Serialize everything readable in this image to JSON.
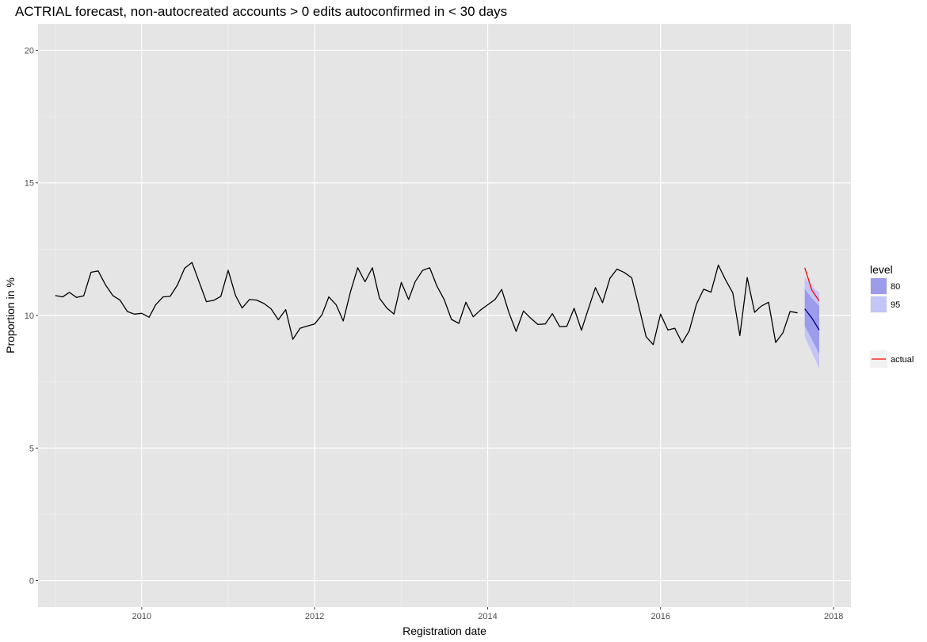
{
  "chart_data": {
    "type": "line",
    "title": "ACTRIAL forecast, non-autocreated accounts > 0 edits autoconfirmed in < 30 days",
    "xlabel": "Registration date",
    "ylabel": "Proportion in %",
    "xlim": [
      "2008-10-20",
      "2018-03-15"
    ],
    "ylim": [
      -1,
      21
    ],
    "x_ticks": [
      "2010",
      "2012",
      "2014",
      "2016",
      "2018"
    ],
    "x_tick_dates": [
      "2010-01-01",
      "2012-01-01",
      "2014-01-01",
      "2016-01-01",
      "2018-01-01"
    ],
    "y_ticks": [
      0,
      5,
      10,
      15,
      20
    ],
    "y_tick_labels": [
      "0",
      "5",
      "10",
      "15",
      "20"
    ],
    "grid": true,
    "legend_position": "right",
    "colors": {
      "panel": "#e5e5e5",
      "grid_major": "#ffffff",
      "history": "#000000",
      "forecast_mean": "#00008b",
      "band_80": "#9c9ceb",
      "band_95": "#c4c4f6",
      "actual": "#ff0000"
    },
    "legend": {
      "fill_title": "level",
      "fill_items": [
        {
          "label": "80",
          "color": "#9c9ceb"
        },
        {
          "label": "95",
          "color": "#c4c4f6"
        }
      ],
      "line_items": [
        {
          "label": "actual",
          "color": "#ff0000"
        }
      ]
    },
    "history": {
      "start": "2009-01",
      "values": [
        10.75,
        10.7,
        10.87,
        10.68,
        10.74,
        11.63,
        11.68,
        11.15,
        10.75,
        10.58,
        10.15,
        10.05,
        10.08,
        9.93,
        10.4,
        10.7,
        10.72,
        11.15,
        11.78,
        12.0,
        11.25,
        10.52,
        10.57,
        10.72,
        11.7,
        10.75,
        10.28,
        10.6,
        10.58,
        10.45,
        10.25,
        9.84,
        10.22,
        9.1,
        9.52,
        9.6,
        9.68,
        10.02,
        10.7,
        10.4,
        9.79,
        10.91,
        11.8,
        11.27,
        11.8,
        10.65,
        10.28,
        10.05,
        11.25,
        10.6,
        11.28,
        11.7,
        11.8,
        11.1,
        10.6,
        9.85,
        9.7,
        10.5,
        9.95,
        10.2,
        10.4,
        10.6,
        10.98,
        10.1,
        9.4,
        10.17,
        9.9,
        9.66,
        9.68,
        10.07,
        9.58,
        9.59,
        10.27,
        9.44,
        10.22,
        11.05,
        10.48,
        11.4,
        11.75,
        11.62,
        11.42,
        10.35,
        9.2,
        8.9,
        10.05,
        9.45,
        9.52,
        8.97,
        9.42,
        10.43,
        10.99,
        10.88,
        11.9,
        11.35,
        10.85,
        9.24,
        11.43,
        10.12,
        10.35,
        10.5,
        8.98,
        9.35,
        10.15,
        10.1
      ]
    },
    "forecast": {
      "start": "2017-09",
      "mean": [
        10.25,
        9.9,
        9.45
      ],
      "lo80": [
        9.6,
        9.1,
        8.55
      ],
      "hi80": [
        11.0,
        10.65,
        10.35
      ],
      "lo95": [
        9.2,
        8.6,
        8.0
      ],
      "hi95": [
        11.45,
        11.1,
        10.85
      ]
    },
    "actual": {
      "start": "2017-09",
      "values": [
        11.8,
        10.95,
        10.55
      ]
    }
  }
}
